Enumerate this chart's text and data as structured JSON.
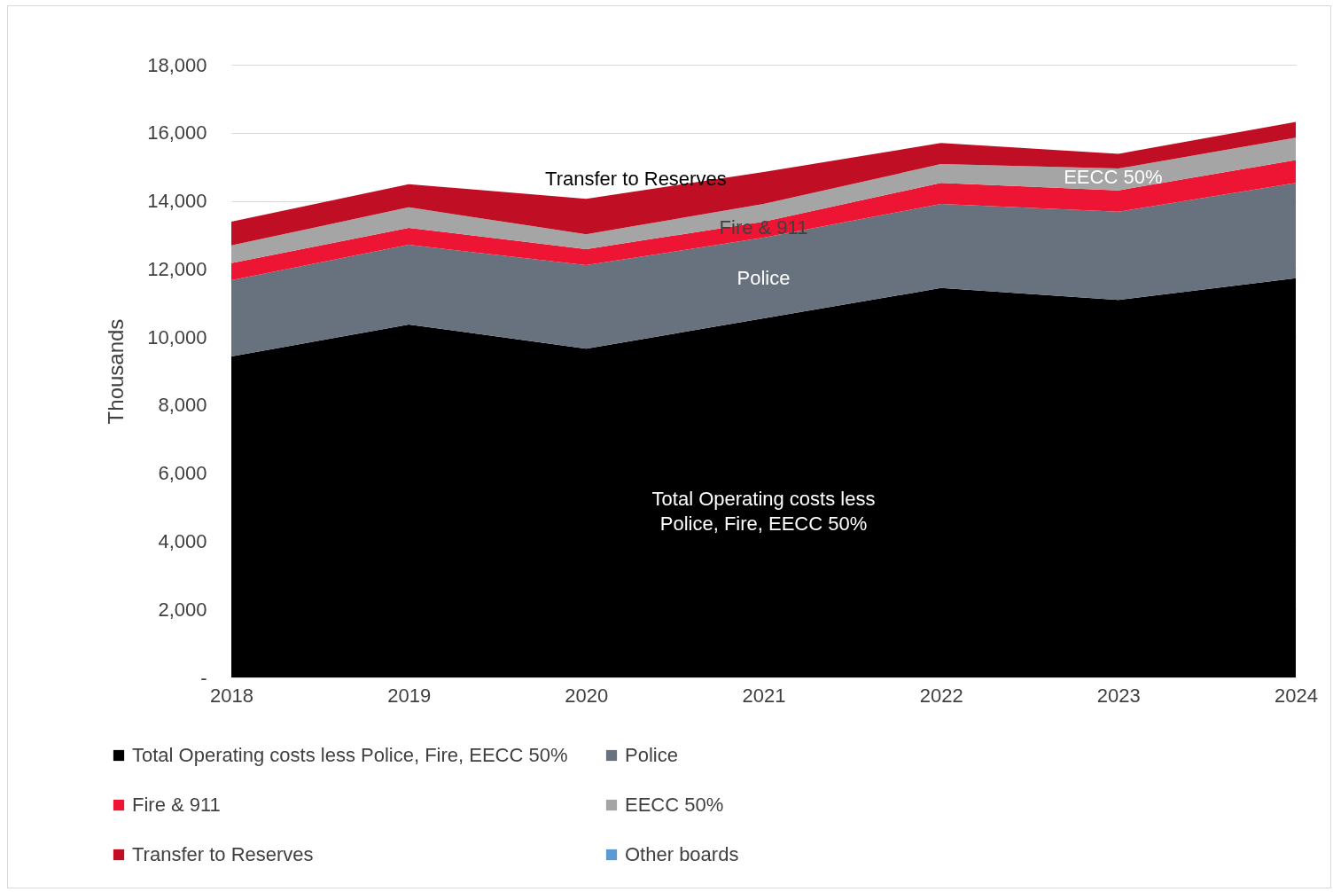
{
  "chart_data": {
    "type": "area",
    "stacked": true,
    "ylabel": "Thousands",
    "x": [
      2018,
      2019,
      2020,
      2021,
      2022,
      2023,
      2024
    ],
    "series": [
      {
        "name": "Total Operating costs less Police, Fire, EECC 50%",
        "color": "#000000",
        "values": [
          9430,
          10370,
          9660,
          10550,
          11440,
          11090,
          11730
        ]
      },
      {
        "name": "Police",
        "color": "#67727e",
        "values": [
          2240,
          2340,
          2450,
          2370,
          2470,
          2590,
          2800
        ]
      },
      {
        "name": "Fire & 911",
        "color": "#ed1533",
        "values": [
          500,
          500,
          470,
          470,
          620,
          630,
          670
        ]
      },
      {
        "name": "EECC 50%",
        "color": "#a5a5a5",
        "values": [
          520,
          600,
          440,
          520,
          550,
          640,
          660
        ]
      },
      {
        "name": "Transfer to Reserves",
        "color": "#c00f24",
        "values": [
          700,
          680,
          1040,
          940,
          620,
          430,
          460
        ]
      },
      {
        "name": "Other boards",
        "color": "#5b9bd5",
        "values": [
          null,
          null,
          null,
          null,
          null,
          null,
          null
        ]
      }
    ],
    "xlim": [
      2018,
      2024
    ],
    "xticks": [
      2018,
      2019,
      2020,
      2021,
      2022,
      2023,
      2024
    ],
    "ylim": [
      0,
      18000
    ],
    "yticks": [
      {
        "value": 0,
        "label": "-"
      },
      {
        "value": 2000,
        "label": "2,000"
      },
      {
        "value": 4000,
        "label": "4,000"
      },
      {
        "value": 6000,
        "label": "6,000"
      },
      {
        "value": 8000,
        "label": "8,000"
      },
      {
        "value": 10000,
        "label": "10,000"
      },
      {
        "value": 12000,
        "label": "12,000"
      },
      {
        "value": 14000,
        "label": "14,000"
      },
      {
        "value": 16000,
        "label": "16,000"
      },
      {
        "value": 18000,
        "label": "18,000"
      }
    ],
    "grid": "y",
    "legend": "bottom",
    "annotations": [
      "Transfer to Reserves",
      "Fire & 911",
      "Police",
      "Total Operating costs less\nPolice, Fire, EECC 50%",
      "EECC 50%"
    ]
  }
}
